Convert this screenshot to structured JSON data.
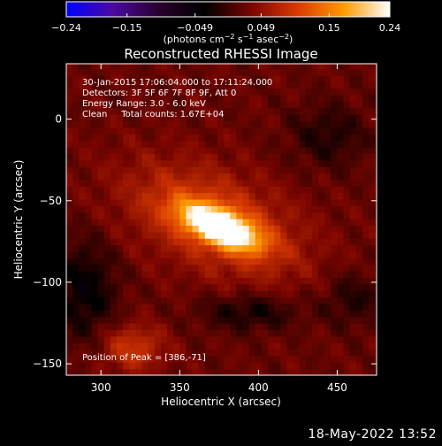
{
  "chart_data": {
    "type": "heatmap",
    "title": "Reconstructed RHESSI Image",
    "xlabel": "Heliocentric X (arcsec)",
    "ylabel": "Heliocentric Y (arcsec)",
    "xlim": [
      278,
      475
    ],
    "ylim": [
      -157,
      34
    ],
    "x_ticks": [
      "300",
      "350",
      "400",
      "450"
    ],
    "x_tick_values": [
      300,
      350,
      400,
      450
    ],
    "y_ticks": [
      "0",
      "−50",
      "−100",
      "−150"
    ],
    "y_tick_values": [
      0,
      -50,
      -100,
      -150
    ],
    "colorbar": {
      "range": [
        -0.24,
        0.24
      ],
      "tick_labels": [
        "−0.24",
        "−0.15",
        "−0.049",
        "0.049",
        "0.15",
        "0.24"
      ],
      "tick_values": [
        -0.24,
        -0.15,
        -0.049,
        0.049,
        0.15,
        0.24
      ],
      "unit_label": "(photons cm",
      "unit_sup1": "−2",
      "unit_mid": " s",
      "unit_sup2": "−1",
      "unit_mid2": " asec",
      "unit_sup3": "−2",
      "unit_end": ")",
      "colors": [
        "#0000ff",
        "#4b0aa0",
        "#28002d",
        "#000000",
        "#7a0500",
        "#d83a00",
        "#ff9a00",
        "#ffffff"
      ]
    },
    "annotations": [
      "30-Jan-2015 17:06:04.000 to 17:11:24.000",
      "Detectors: 3F 5F 6F 7F 8F 9F, Att 0",
      "Energy Range: 3.0 - 6.0 keV",
      "Clean     Total counts: 1.67E+04"
    ],
    "peak_label": "Position of Peak = [386,-71]",
    "peak": {
      "x": 386,
      "y": -71,
      "value": 0.24
    },
    "sources": [
      {
        "x": 376,
        "y": -66,
        "sx": 18,
        "sy": 7,
        "angle": -22,
        "amp": 0.24
      },
      {
        "x": 372,
        "y": -62,
        "sx": 40,
        "sy": 20,
        "angle": -22,
        "amp": 0.09
      },
      {
        "x": 320,
        "y": -140,
        "sx": 14,
        "sy": 10,
        "angle": 0,
        "amp": 0.07
      }
    ],
    "negative_regions": [
      {
        "x": 290,
        "y": -105,
        "sx": 14,
        "sy": 22,
        "amp": -0.06
      },
      {
        "x": 395,
        "y": -118,
        "sx": 22,
        "sy": 8,
        "amp": -0.05
      },
      {
        "x": 445,
        "y": -10,
        "sx": 18,
        "sy": 14,
        "amp": -0.04
      },
      {
        "x": 460,
        "y": -110,
        "sx": 14,
        "sy": 12,
        "amp": -0.04
      }
    ]
  },
  "timestamp": "18-May-2022 13:52"
}
